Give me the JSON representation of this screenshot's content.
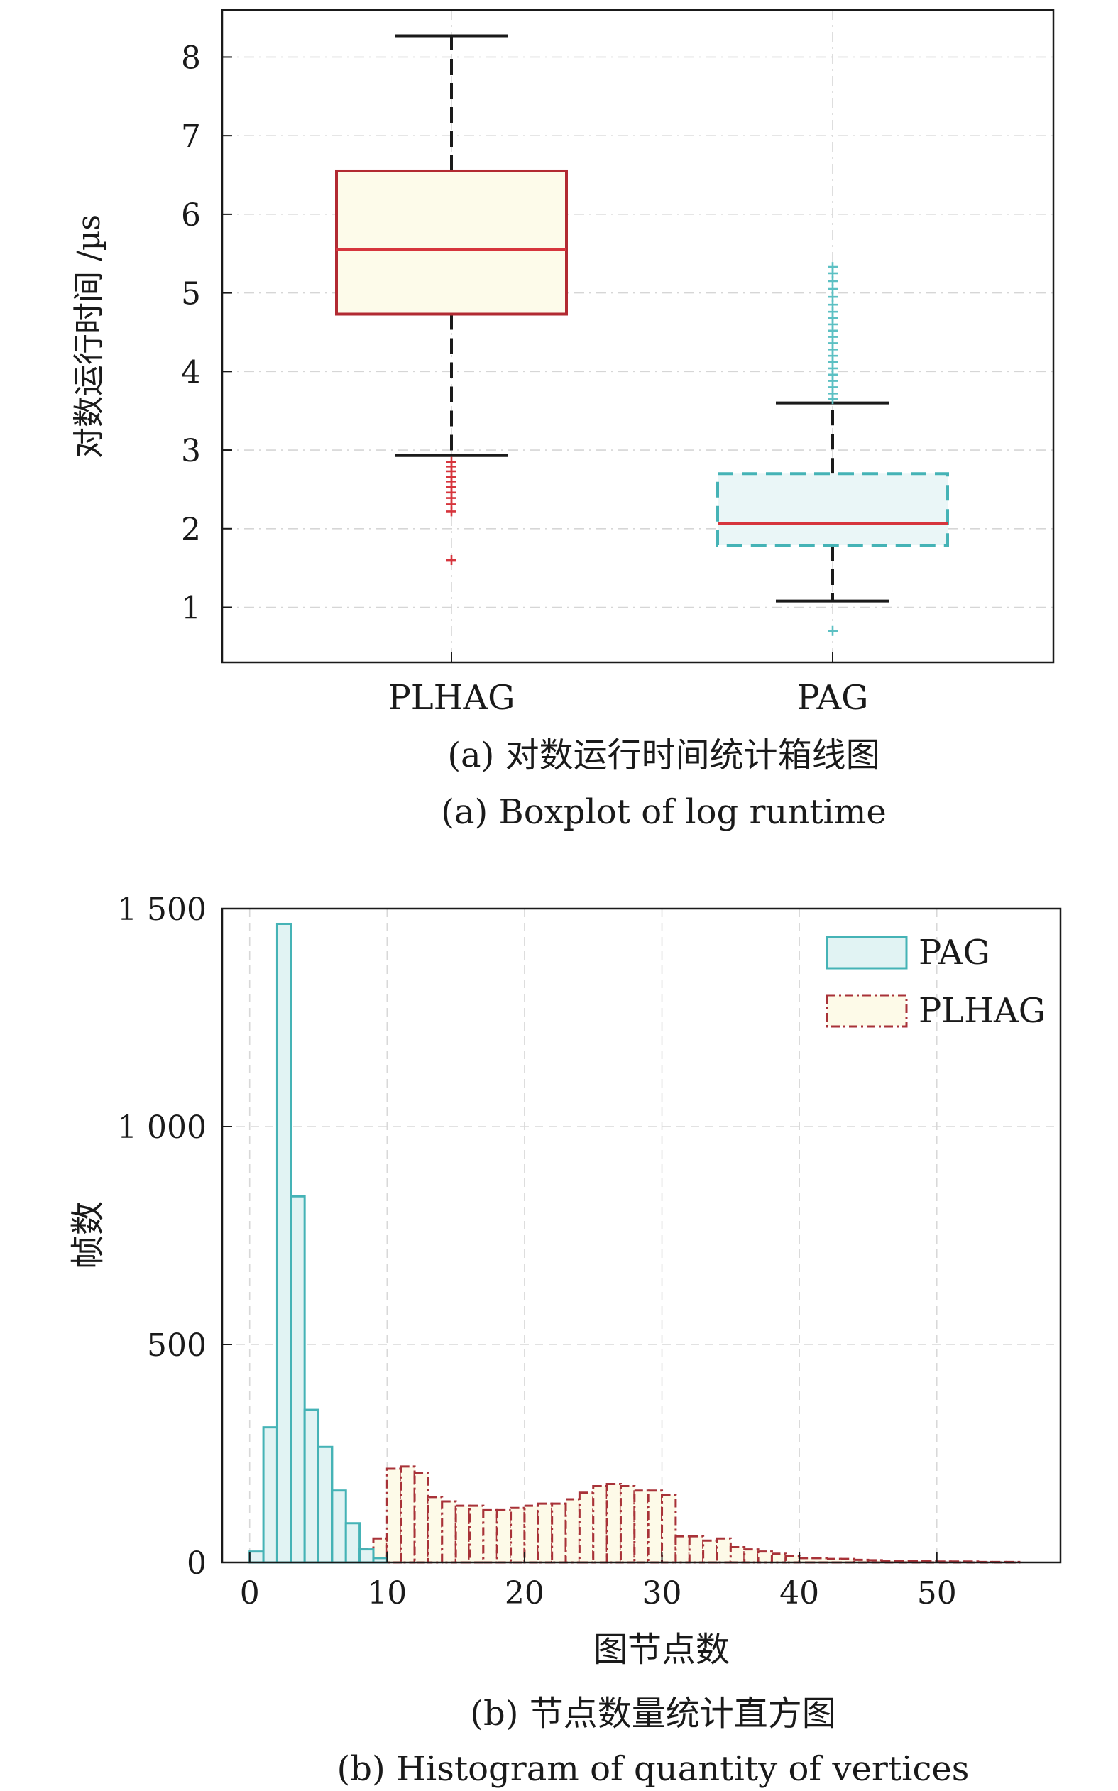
{
  "chart_data": [
    {
      "type": "box",
      "ylabel": "对数运行时间 /µs",
      "ylim": [
        0.3,
        8.6
      ],
      "yticks": [
        1,
        2,
        3,
        4,
        5,
        6,
        7,
        8
      ],
      "categories": [
        "PLHAG",
        "PAG"
      ],
      "caption_cn": "(a) 对数运行时间统计箱线图",
      "caption_en": "(a) Boxplot of log runtime",
      "grid": true,
      "boxes": [
        {
          "category": "PLHAG",
          "whisker_low": 2.93,
          "q1": 4.73,
          "median": 5.55,
          "q3": 6.55,
          "whisker_high": 8.27,
          "outliers": [
            2.85,
            2.79,
            2.73,
            2.66,
            2.6,
            2.53,
            2.46,
            2.39,
            2.31,
            2.22,
            1.6
          ],
          "box_color": "#b22a32",
          "fill_color": "#fdfbea",
          "median_color": "#d6353d",
          "box_style": "solid"
        },
        {
          "category": "PAG",
          "whisker_low": 1.08,
          "q1": 1.79,
          "median": 2.07,
          "q3": 2.7,
          "whisker_high": 3.6,
          "outliers": [
            3.65,
            3.72,
            3.8,
            3.88,
            3.96,
            4.04,
            4.12,
            4.2,
            4.28,
            4.36,
            4.44,
            4.52,
            4.6,
            4.68,
            4.76,
            4.85,
            4.95,
            5.05,
            5.15,
            5.25,
            5.33,
            0.7
          ],
          "box_color": "#45b3b6",
          "fill_color": "#eaf6f7",
          "median_color": "#d6353d",
          "box_style": "dashed"
        }
      ],
      "whisker_color": "#1a1a1a"
    },
    {
      "type": "histogram",
      "xlabel": "图节点数",
      "ylabel": "帧数",
      "xlim": [
        -2,
        59
      ],
      "ylim": [
        0,
        1500
      ],
      "xticks": [
        0,
        10,
        20,
        30,
        40,
        50
      ],
      "yticks": [
        0,
        500,
        1000,
        1500
      ],
      "ytick_labels": [
        "0",
        "500",
        "1 000",
        "1 500"
      ],
      "caption_cn": "(b) 节点数量统计直方图",
      "caption_en": "(b) Histogram of quantity of vertices",
      "legend_position": "top-right",
      "grid": true,
      "series": [
        {
          "name": "PAG",
          "edge_color": "#45b3b6",
          "fill_color": "#e1f3f3",
          "style": "solid",
          "bin_edges": [
            0,
            1,
            2,
            3,
            4,
            5,
            6,
            7,
            8,
            9,
            10
          ],
          "counts": [
            25,
            310,
            1465,
            840,
            350,
            265,
            165,
            90,
            30,
            10
          ]
        },
        {
          "name": "PLHAG",
          "edge_color": "#a83238",
          "fill_color": "#fdfae8",
          "style": "dashdot",
          "bin_edges": [
            6,
            7,
            8,
            9,
            10,
            11,
            12,
            13,
            14,
            15,
            16,
            17,
            18,
            19,
            20,
            21,
            22,
            23,
            24,
            25,
            26,
            27,
            28,
            29,
            30,
            31,
            32,
            33,
            34,
            35,
            36,
            37,
            38,
            39,
            40,
            41,
            42,
            43,
            44,
            45,
            46,
            47,
            48,
            49,
            50,
            51,
            52,
            53,
            54,
            55,
            56
          ],
          "counts": [
            3,
            10,
            30,
            55,
            215,
            220,
            205,
            150,
            140,
            130,
            130,
            120,
            120,
            125,
            130,
            135,
            135,
            145,
            160,
            175,
            180,
            175,
            165,
            165,
            155,
            60,
            60,
            50,
            55,
            35,
            30,
            25,
            20,
            15,
            10,
            10,
            8,
            8,
            6,
            5,
            4,
            4,
            3,
            3,
            2,
            2,
            2,
            1,
            1,
            1
          ]
        }
      ]
    }
  ]
}
